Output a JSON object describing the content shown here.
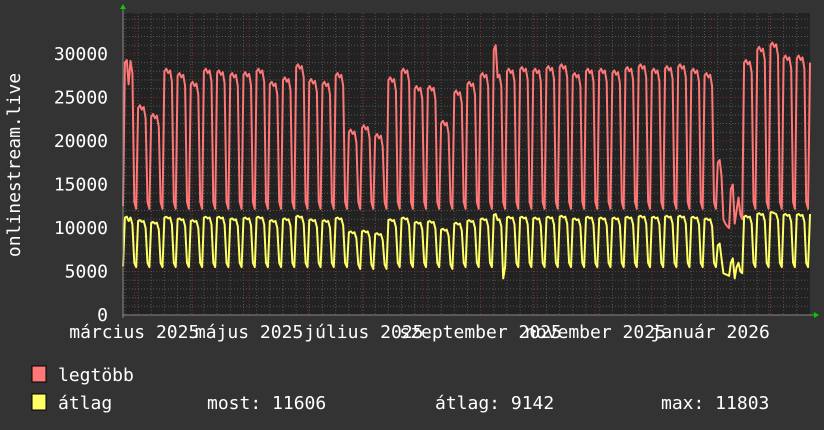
{
  "chart_data": {
    "type": "line",
    "title": "",
    "ylabel": "onlinestream.live",
    "xlabel": "",
    "ylim": [
      0,
      34700
    ],
    "y_ticks": [
      0,
      5000,
      10000,
      15000,
      20000,
      25000,
      30000
    ],
    "y_tick_labels": [
      "0",
      "5000",
      "10000",
      "15000",
      "20000",
      "25000",
      "30000"
    ],
    "x_ticks": [
      {
        "label": "március 2025",
        "date": "2025-03-01"
      },
      {
        "label": "május 2025",
        "date": "2025-05-01"
      },
      {
        "label": "július 2025",
        "date": "2025-07-01"
      },
      {
        "label": "szeptember 2025",
        "date": "2025-09-01"
      },
      {
        "label": "november 2025",
        "date": "2025-11-01"
      },
      {
        "label": "január 2026",
        "date": "2026-01-01"
      }
    ],
    "grid": true,
    "x_resolution": "daily",
    "legend_placement": "bottom-left",
    "colors": {
      "background": "#333333",
      "plot_background": "#222222",
      "minor_grid": "#555555",
      "major_grid": "#7a2a2a",
      "axis_arrow": "#00cc00"
    },
    "series": [
      {
        "name": "legtöbb",
        "color": "#ff7777",
        "values": [
          12500,
          29000,
          29300,
          26500,
          29200,
          27800,
          13000,
          12200,
          23800,
          24100,
          23600,
          23900,
          22600,
          13000,
          12200,
          22800,
          23100,
          22600,
          22900,
          21600,
          13000,
          12200,
          28000,
          28300,
          27800,
          28100,
          26800,
          13000,
          12200,
          27500,
          27800,
          27300,
          27600,
          26300,
          13000,
          12200,
          26500,
          26800,
          26300,
          26600,
          25300,
          13000,
          12200,
          28000,
          28300,
          27800,
          28100,
          26800,
          13000,
          12200,
          27800,
          28100,
          27600,
          27900,
          26600,
          13000,
          12200,
          27500,
          27800,
          27300,
          27600,
          26300,
          13000,
          12200,
          27600,
          27900,
          27400,
          27700,
          26400,
          13000,
          12200,
          28000,
          28300,
          27800,
          28100,
          26800,
          13000,
          12200,
          26500,
          26800,
          26300,
          26600,
          25300,
          13000,
          12200,
          27000,
          27300,
          26800,
          27100,
          25800,
          13000,
          12200,
          28500,
          28800,
          28300,
          28600,
          27300,
          13000,
          12200,
          26800,
          27100,
          26600,
          26900,
          25600,
          13000,
          12200,
          26500,
          26800,
          26300,
          26600,
          25300,
          13000,
          12200,
          27500,
          27800,
          27300,
          27600,
          26300,
          13000,
          12200,
          21000,
          21300,
          20800,
          21100,
          19800,
          13000,
          12200,
          21500,
          21800,
          21300,
          21600,
          20300,
          13000,
          12200,
          20500,
          20800,
          20300,
          20600,
          19300,
          13000,
          12200,
          27000,
          27300,
          26800,
          27100,
          25800,
          13000,
          12200,
          28000,
          28300,
          27800,
          28100,
          26800,
          13000,
          12200,
          26000,
          26300,
          25800,
          26100,
          24800,
          13000,
          12200,
          26000,
          26300,
          25800,
          26100,
          24800,
          13000,
          12200,
          22000,
          22300,
          21800,
          22100,
          20800,
          13000,
          12200,
          25500,
          25800,
          25300,
          25600,
          24300,
          13000,
          12200,
          26500,
          26800,
          26300,
          26600,
          25300,
          13000,
          12200,
          27500,
          27800,
          27300,
          27600,
          26300,
          13000,
          12200,
          30500,
          31000,
          27300,
          27600,
          26300,
          13000,
          12200,
          28000,
          28300,
          27800,
          28100,
          26800,
          13000,
          12200,
          28200,
          28500,
          28000,
          28300,
          27000,
          13000,
          12200,
          28000,
          28300,
          27800,
          28100,
          26800,
          13000,
          12200,
          28300,
          28600,
          28100,
          28400,
          27100,
          13000,
          12200,
          28500,
          28800,
          28300,
          28600,
          27300,
          13000,
          12200,
          27500,
          27800,
          27300,
          27600,
          26300,
          13000,
          12200,
          28000,
          28300,
          27800,
          28100,
          26800,
          13000,
          12200,
          28000,
          28300,
          27800,
          28100,
          26800,
          13000,
          12200,
          27800,
          28100,
          27600,
          27900,
          26600,
          13000,
          12200,
          28200,
          28500,
          28000,
          28300,
          27000,
          13000,
          12200,
          28500,
          28800,
          28300,
          28600,
          27300,
          13000,
          12200,
          28000,
          28300,
          27800,
          28100,
          26800,
          13000,
          12200,
          28300,
          28600,
          28100,
          28400,
          27100,
          13000,
          12200,
          28500,
          28800,
          28300,
          28600,
          27300,
          13000,
          12200,
          28000,
          28300,
          27800,
          28100,
          26800,
          13000,
          12200,
          27500,
          27800,
          27300,
          27600,
          26300,
          13000,
          12200,
          17500,
          17800,
          16000,
          11000,
          10500,
          10200,
          10000,
          14500,
          15000,
          10500,
          12000,
          13500,
          11500,
          11000,
          29000,
          29300,
          28800,
          29100,
          27800,
          13000,
          12200,
          30500,
          30800,
          30300,
          30600,
          29300,
          13000,
          12200,
          31000,
          31300,
          30800,
          31100,
          29800,
          13000,
          12200,
          29500,
          29800,
          29300,
          29600,
          28300,
          13000,
          12200,
          29500,
          29800,
          29300,
          29600,
          28300,
          13000,
          12200,
          29000
        ]
      },
      {
        "name": "átlag",
        "color": "#ffff66",
        "values": [
          5600,
          11200,
          11300,
          10800,
          11200,
          10400,
          6000,
          5500,
          10800,
          10900,
          10700,
          10800,
          10000,
          6000,
          5500,
          10600,
          10700,
          10500,
          10600,
          9800,
          6000,
          5500,
          11200,
          11300,
          11100,
          11200,
          10400,
          6000,
          5500,
          11000,
          11100,
          10900,
          11000,
          10200,
          6000,
          5500,
          10800,
          10900,
          10700,
          10800,
          10000,
          6000,
          5500,
          11200,
          11300,
          11100,
          11200,
          10400,
          6000,
          5500,
          11200,
          11300,
          11100,
          11200,
          10400,
          6000,
          5500,
          11000,
          11100,
          10900,
          11000,
          10200,
          6000,
          5500,
          11100,
          11200,
          11000,
          11100,
          10300,
          6000,
          5500,
          11200,
          11300,
          11100,
          11200,
          10400,
          6000,
          5500,
          10800,
          10900,
          10700,
          10800,
          10000,
          6000,
          5500,
          11000,
          11100,
          10900,
          11000,
          10200,
          6000,
          5500,
          11300,
          11400,
          11200,
          11300,
          10500,
          6000,
          5500,
          10900,
          11000,
          10800,
          10900,
          10100,
          6000,
          5500,
          10800,
          10900,
          10700,
          10800,
          10000,
          6000,
          5500,
          11100,
          11200,
          11000,
          11100,
          10300,
          6000,
          5500,
          9500,
          9600,
          9400,
          9500,
          8800,
          5800,
          5300,
          9600,
          9700,
          9500,
          9600,
          8900,
          5800,
          5300,
          9300,
          9400,
          9200,
          9300,
          8600,
          5800,
          5300,
          10900,
          11000,
          10800,
          10900,
          10100,
          6000,
          5500,
          11100,
          11200,
          11000,
          11100,
          10300,
          6000,
          5500,
          10600,
          10700,
          10500,
          10600,
          9800,
          6000,
          5500,
          10700,
          10800,
          10600,
          10700,
          9900,
          6000,
          5500,
          9800,
          9900,
          9700,
          9800,
          9100,
          5800,
          5300,
          10500,
          10600,
          10400,
          10500,
          9700,
          6000,
          5500,
          10800,
          10900,
          10700,
          10800,
          10000,
          6000,
          5500,
          11000,
          11100,
          10900,
          11000,
          10200,
          6000,
          5500,
          11500,
          11600,
          10900,
          11000,
          10200,
          4200,
          5500,
          11200,
          11300,
          11100,
          11200,
          10400,
          6000,
          5500,
          11200,
          11300,
          11100,
          11200,
          10400,
          6000,
          5500,
          11100,
          11200,
          11000,
          11100,
          10300,
          6000,
          5500,
          11200,
          11300,
          11100,
          11200,
          10400,
          6000,
          5500,
          11300,
          11400,
          11200,
          11300,
          10500,
          6000,
          5500,
          11000,
          11100,
          10900,
          11000,
          10200,
          6000,
          5500,
          11200,
          11300,
          11100,
          11200,
          10400,
          6000,
          5500,
          11100,
          11200,
          11000,
          11100,
          10300,
          6000,
          5500,
          11100,
          11200,
          11000,
          11100,
          10300,
          6000,
          5500,
          11200,
          11300,
          11100,
          11200,
          10400,
          6000,
          5500,
          11300,
          11400,
          11200,
          11300,
          10500,
          6000,
          5500,
          11200,
          11300,
          11100,
          11200,
          10400,
          6000,
          5500,
          11300,
          11400,
          11200,
          11300,
          10500,
          6000,
          5500,
          11300,
          11400,
          11200,
          11300,
          10500,
          6000,
          5500,
          11200,
          11300,
          11100,
          11200,
          10400,
          6000,
          5500,
          11000,
          11100,
          10900,
          11000,
          10200,
          6000,
          5500,
          8000,
          8200,
          6500,
          4800,
          4700,
          4600,
          4500,
          6000,
          6500,
          4200,
          5500,
          6000,
          5000,
          4800,
          11300,
          11400,
          11200,
          11300,
          10500,
          6000,
          5500,
          11600,
          11700,
          11500,
          11600,
          10800,
          6000,
          5500,
          11800,
          11803,
          11700,
          11600,
          10900,
          6000,
          5500,
          11500,
          11600,
          11400,
          11500,
          10700,
          6000,
          5500,
          11500,
          11600,
          11400,
          11500,
          10700,
          6000,
          5500,
          11606
        ]
      }
    ]
  },
  "legend": [
    {
      "label": "legtöbb",
      "color": "#ff7777"
    },
    {
      "label": "átlag",
      "color": "#ffff66",
      "stats": {
        "most": "most: 11606",
        "atlag": "átlag: 9142",
        "max": "max: 11803"
      }
    }
  ]
}
